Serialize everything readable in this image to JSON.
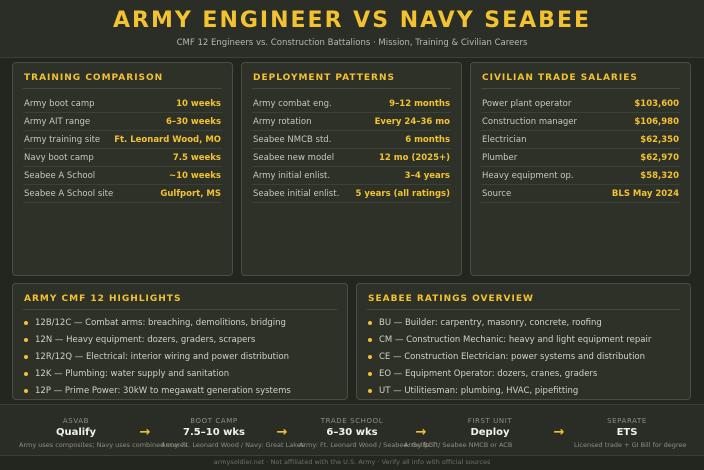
{
  "header": {
    "title": "ARMY ENGINEER VS NAVY SEABEE",
    "subtitle": "CMF 12 Engineers vs. Construction Battalions · Mission, Training & Civilian Careers"
  },
  "training": {
    "title": "TRAINING COMPARISON",
    "rows": [
      {
        "label": "Army boot camp",
        "value": "10 weeks"
      },
      {
        "label": "Army AIT range",
        "value": "6–30 weeks"
      },
      {
        "label": "Army training site",
        "value": "Ft. Leonard Wood, MO"
      },
      {
        "label": "Navy boot camp",
        "value": "7.5 weeks"
      },
      {
        "label": "Seabee A School",
        "value": "~10 weeks"
      },
      {
        "label": "Seabee A School site",
        "value": "Gulfport, MS"
      }
    ]
  },
  "deployment": {
    "title": "DEPLOYMENT PATTERNS",
    "rows": [
      {
        "label": "Army combat eng.",
        "value": "9–12 months"
      },
      {
        "label": "Army rotation",
        "value": "Every 24–36 mo"
      },
      {
        "label": "Seabee NMCB std.",
        "value": "6 months"
      },
      {
        "label": "Seabee new model",
        "value": "12 mo (2025+)"
      },
      {
        "label": "Army initial enlist.",
        "value": "3–4 years"
      },
      {
        "label": "Seabee initial enlist.",
        "value": "5 years (all ratings)"
      }
    ]
  },
  "salaries": {
    "title": "CIVILIAN TRADE SALARIES",
    "rows": [
      {
        "label": "Power plant operator",
        "value": "$103,600"
      },
      {
        "label": "Construction manager",
        "value": "$106,980"
      },
      {
        "label": "Electrician",
        "value": "$62,350"
      },
      {
        "label": "Plumber",
        "value": "$62,970"
      },
      {
        "label": "Heavy equipment op.",
        "value": "$58,320"
      },
      {
        "label": "Source",
        "value": "BLS May 2024"
      }
    ]
  },
  "army_highlights": {
    "title": "ARMY CMF 12 HIGHLIGHTS",
    "items": [
      "12B/12C — Combat arms: breaching, demolitions, bridging",
      "12N — Heavy equipment: dozers, graders, scrapers",
      "12R/12Q — Electrical: interior wiring and power distribution",
      "12K — Plumbing: water supply and sanitation",
      "12P — Prime Power: 30kW to megawatt generation systems"
    ]
  },
  "seabee_ratings": {
    "title": "SEABEE RATINGS OVERVIEW",
    "items": [
      "BU — Builder: carpentry, masonry, concrete, roofing",
      "CM — Construction Mechanic: heavy and light equipment repair",
      "CE — Construction Electrician: power systems and distribution",
      "EO — Equipment Operator: dozers, cranes, graders",
      "UT — Utilitiesman: plumbing, HVAC, pipefitting"
    ]
  },
  "pathway": {
    "steps": [
      {
        "label": "ASVAB",
        "value": "Qualify",
        "note": "Army uses composites; Navy uses combined scores"
      },
      {
        "label": "BOOT CAMP",
        "value": "7.5–10 wks",
        "note": "Army: Ft. Leonard Wood / Navy: Great Lakes"
      },
      {
        "label": "TRADE SCHOOL",
        "value": "6–30 wks",
        "note": "Army: Ft. Leonard Wood / Seabee: Gulfport"
      },
      {
        "label": "FIRST UNIT",
        "value": "Deploy",
        "note": "Army BCT / Seabee NMCB or ACB"
      },
      {
        "label": "SEPARATE",
        "value": "ETS",
        "note": "Licensed trade + GI Bill for degree"
      }
    ],
    "arrow": "→"
  },
  "footer": {
    "text": "armysoldier.net · Not affiliated with the U.S. Army · Verify all info with official sources"
  },
  "colors": {
    "accent": "#f2c230",
    "background": "#23261f",
    "panel": "#2e3128"
  }
}
